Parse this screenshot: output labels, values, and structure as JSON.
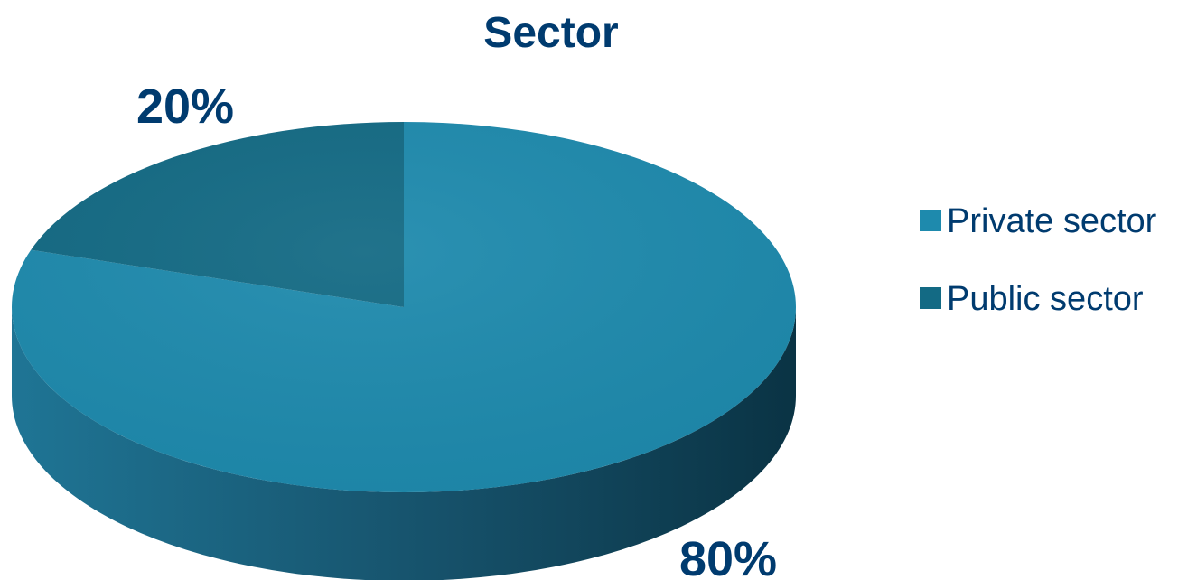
{
  "chart_data": {
    "type": "pie",
    "title": "Sector",
    "categories": [
      "Private sector",
      "Public sector"
    ],
    "values": [
      80,
      20
    ],
    "unit": "%",
    "data_labels": [
      "80%",
      "20%"
    ],
    "legend": {
      "placement": "right",
      "entries": [
        "Private sector",
        "Public sector"
      ]
    },
    "style": "3d",
    "colors": {
      "private_top": "#1e8aad",
      "public_top": "#136a84",
      "text": "#003b6f"
    }
  }
}
